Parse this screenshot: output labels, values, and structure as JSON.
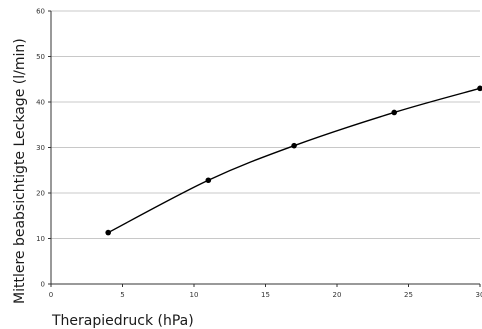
{
  "chart_data": {
    "type": "line",
    "x": [
      4,
      11,
      17,
      24,
      30
    ],
    "series": [
      {
        "values": [
          11.3,
          22.8,
          30.4,
          37.7,
          43.0
        ]
      }
    ],
    "xlabel": "Therapiedruck (hPa)",
    "ylabel": "Mittlere beabsichtigte Leckage (l/min)",
    "xlim": [
      0,
      30
    ],
    "ylim": [
      0,
      60
    ],
    "xticks": [
      "0",
      "5",
      "10",
      "15",
      "20",
      "25",
      "30"
    ],
    "yticks": [
      "0",
      "10",
      "20",
      "30",
      "40",
      "50",
      "60"
    ],
    "grid": "horizontal",
    "colors": {
      "line": "#000000",
      "marker": "#000000",
      "grid": "#c8c8c8"
    }
  }
}
